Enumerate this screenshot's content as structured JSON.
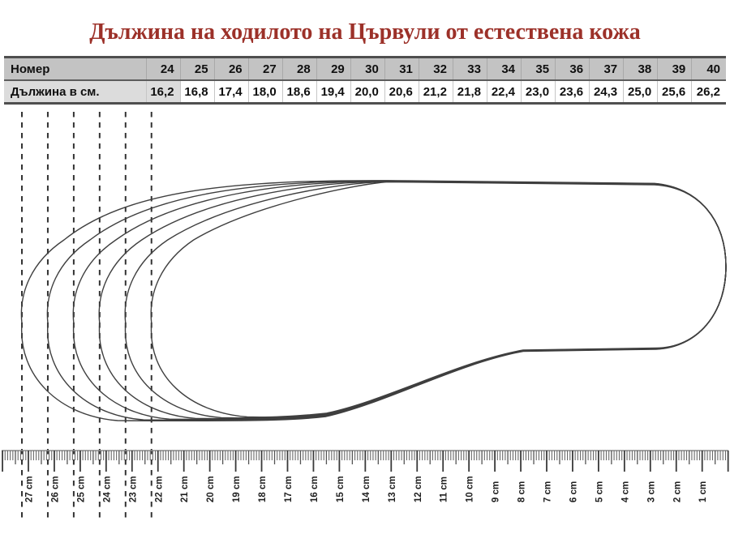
{
  "title": {
    "text": "Дължина на ходилото на Цървули от естествена кожа",
    "color": "#9c3129"
  },
  "size_table": {
    "number_row": {
      "label": "Номер",
      "values": [
        "24",
        "25",
        "26",
        "27",
        "28",
        "29",
        "30",
        "31",
        "32",
        "33",
        "34",
        "35",
        "36",
        "37",
        "38",
        "39",
        "40"
      ]
    },
    "length_row": {
      "label": "Дължина в см.",
      "values": [
        "16,2",
        "16,8",
        "17,4",
        "18,0",
        "18,6",
        "19,4",
        "20,0",
        "20,6",
        "21,2",
        "21,8",
        "22,4",
        "23,0",
        "23,6",
        "24,3",
        "25,0",
        "25,6",
        "26,2"
      ]
    },
    "colors": {
      "header_bg": "#c3c3c3",
      "label_bg": "#dcdcdc",
      "highlight_bg": "#dcdcdc",
      "border_dark": "#4f4f4f"
    }
  },
  "diagram": {
    "sole_marks_cm": [
      27,
      26,
      25,
      24,
      23,
      22
    ],
    "outline_color": "#3f3f3f",
    "dash_color": "#333333"
  },
  "ruler": {
    "line_color": "#8a8a8a",
    "tick_color": "#3a3a3a",
    "mid_tick_color": "#555555",
    "minor_tick_color": "#6a6a6a",
    "label_color": "#1f1f1f",
    "labels": [
      {
        "cm": 27,
        "text": "27 cm"
      },
      {
        "cm": 26,
        "text": "26 cm"
      },
      {
        "cm": 25,
        "text": "25 cm"
      },
      {
        "cm": 24,
        "text": "24 cm"
      },
      {
        "cm": 23,
        "text": "23 cm"
      },
      {
        "cm": 22,
        "text": "22 cm"
      },
      {
        "cm": 21,
        "text": "21 cm"
      },
      {
        "cm": 20,
        "text": "20 cm"
      },
      {
        "cm": 19,
        "text": "19 cm"
      },
      {
        "cm": 18,
        "text": "18 cm"
      },
      {
        "cm": 17,
        "text": "17 cm"
      },
      {
        "cm": 16,
        "text": "16 cm"
      },
      {
        "cm": 15,
        "text": "15 cm"
      },
      {
        "cm": 14,
        "text": "14 cm"
      },
      {
        "cm": 13,
        "text": "13 cm"
      },
      {
        "cm": 12,
        "text": "12 cm"
      },
      {
        "cm": 11,
        "text": "11 cm"
      },
      {
        "cm": 10,
        "text": "10 cm"
      },
      {
        "cm": 9,
        "text": "9 cm"
      },
      {
        "cm": 8,
        "text": "8 cm"
      },
      {
        "cm": 7,
        "text": "7 cm"
      },
      {
        "cm": 6,
        "text": "6 cm"
      },
      {
        "cm": 5,
        "text": "5 cm"
      },
      {
        "cm": 4,
        "text": "4 cm"
      },
      {
        "cm": 3,
        "text": "3 cm"
      },
      {
        "cm": 2,
        "text": "2 cm"
      },
      {
        "cm": 1,
        "text": "1 cm"
      }
    ]
  },
  "chart_data": {
    "type": "table",
    "title": "Дължина на ходилото на Цървули от естествена кожа",
    "columns": [
      "Номер",
      "Дължина в см."
    ],
    "categories": [
      24,
      25,
      26,
      27,
      28,
      29,
      30,
      31,
      32,
      33,
      34,
      35,
      36,
      37,
      38,
      39,
      40
    ],
    "series": [
      {
        "name": "Дължина в см.",
        "values": [
          16.2,
          16.8,
          17.4,
          18.0,
          18.6,
          19.4,
          20.0,
          20.6,
          21.2,
          21.8,
          22.4,
          23.0,
          23.6,
          24.3,
          25.0,
          25.6,
          26.2
        ]
      }
    ]
  }
}
